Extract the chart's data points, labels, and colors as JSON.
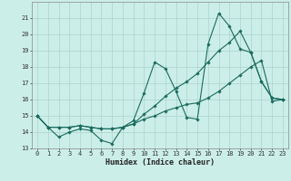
{
  "xlabel": "Humidex (Indice chaleur)",
  "background_color": "#cceee8",
  "grid_color": "#aad4cc",
  "line_color": "#1a6b5e",
  "x_values": [
    0,
    1,
    2,
    3,
    4,
    5,
    6,
    7,
    8,
    9,
    10,
    11,
    12,
    13,
    14,
    15,
    16,
    17,
    18,
    19,
    20,
    21,
    22,
    23
  ],
  "series1": [
    15.0,
    14.3,
    13.7,
    14.0,
    14.2,
    14.1,
    13.5,
    13.3,
    14.3,
    14.7,
    16.4,
    18.3,
    17.9,
    16.5,
    14.9,
    14.8,
    19.4,
    21.3,
    20.5,
    19.1,
    18.9,
    17.1,
    16.1,
    16.0
  ],
  "series2": [
    15.0,
    14.3,
    14.3,
    14.3,
    14.4,
    14.3,
    14.2,
    14.2,
    14.3,
    14.5,
    14.8,
    15.0,
    15.3,
    15.5,
    15.7,
    15.8,
    16.1,
    16.5,
    17.0,
    17.5,
    18.0,
    18.4,
    15.9,
    16.0
  ],
  "series3": [
    15.0,
    14.3,
    14.3,
    14.3,
    14.4,
    14.3,
    14.2,
    14.2,
    14.3,
    14.5,
    15.1,
    15.6,
    16.2,
    16.7,
    17.1,
    17.6,
    18.3,
    19.0,
    19.5,
    20.2,
    18.9,
    17.1,
    16.1,
    16.0
  ],
  "ylim": [
    13,
    22
  ],
  "xlim": [
    -0.5,
    23.5
  ],
  "yticks": [
    13,
    14,
    15,
    16,
    17,
    18,
    19,
    20,
    21
  ],
  "xticks": [
    0,
    1,
    2,
    3,
    4,
    5,
    6,
    7,
    8,
    9,
    10,
    11,
    12,
    13,
    14,
    15,
    16,
    17,
    18,
    19,
    20,
    21,
    22,
    23
  ],
  "tick_fontsize": 5.0,
  "label_fontsize": 6.0
}
